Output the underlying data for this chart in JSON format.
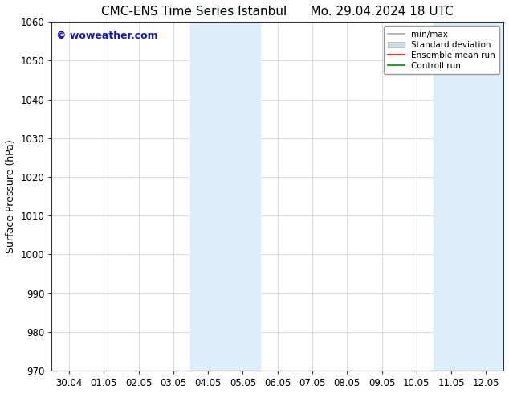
{
  "title_left": "CMC-ENS Time Series Istanbul",
  "title_right": "Mo. 29.04.2024 18 UTC",
  "ylabel": "Surface Pressure (hPa)",
  "ylim": [
    970,
    1060
  ],
  "yticks": [
    970,
    980,
    990,
    1000,
    1010,
    1020,
    1030,
    1040,
    1050,
    1060
  ],
  "xtick_labels": [
    "30.04",
    "01.05",
    "02.05",
    "03.05",
    "04.05",
    "05.05",
    "06.05",
    "07.05",
    "08.05",
    "09.05",
    "10.05",
    "11.05",
    "12.05"
  ],
  "background_color": "#ffffff",
  "plot_bg_color": "#ffffff",
  "shaded_bands": [
    {
      "xmin": 4,
      "xmax": 5,
      "color": "#ddeef8"
    },
    {
      "xmin": 5,
      "xmax": 6,
      "color": "#ddeef8"
    },
    {
      "xmin": 11,
      "xmax": 12,
      "color": "#ddeef8"
    },
    {
      "xmin": 12,
      "xmax": 12.5,
      "color": "#ddeef8"
    }
  ],
  "watermark_text": "© woweather.com",
  "watermark_color": "#1515cc",
  "watermark_fontsize": 9,
  "title_fontsize": 11,
  "axis_label_fontsize": 9,
  "tick_fontsize": 8.5,
  "legend_fontsize": 7.5,
  "grid_color": "#cccccc",
  "grid_lw": 0.5,
  "num_xticks": 13,
  "minmax_color": "#aaaaaa",
  "std_color": "#ccdde8",
  "ens_color": "#ff0000",
  "ctrl_color": "#008800"
}
